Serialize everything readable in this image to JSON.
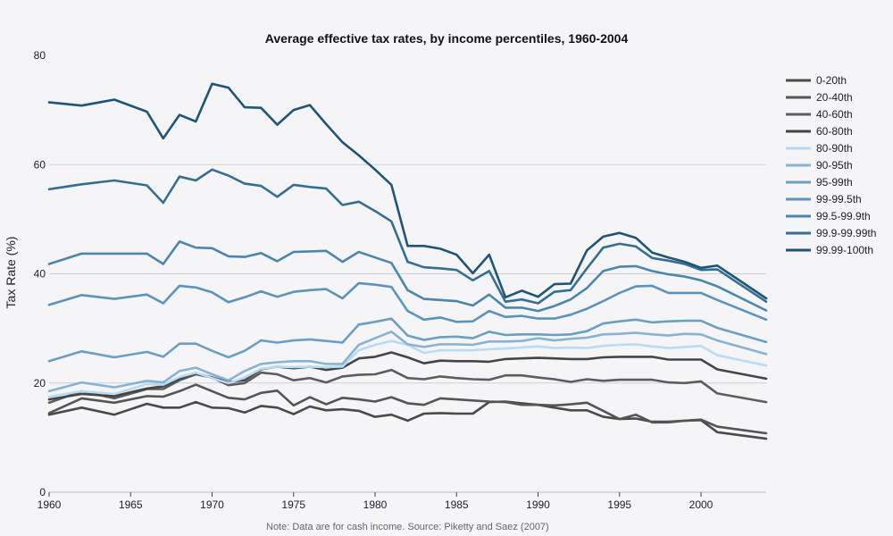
{
  "chart_data": {
    "type": "line",
    "title": "Average effective tax rates, by income percentiles, 1960-2004",
    "ylabel": "Tax Rate (%)",
    "xlabel": "",
    "note": "Note: Data are for cash income. Source: Piketty and Saez (2007)",
    "xlim": [
      1960,
      2004
    ],
    "ylim": [
      0,
      80
    ],
    "x_ticks": [
      1960,
      1965,
      1970,
      1975,
      1980,
      1985,
      1990,
      1995,
      2000
    ],
    "y_ticks": [
      0,
      20,
      40,
      60,
      80
    ],
    "grid": true,
    "legend_position": "right",
    "x": [
      1960,
      1962,
      1964,
      1966,
      1967,
      1968,
      1969,
      1970,
      1971,
      1972,
      1973,
      1974,
      1975,
      1976,
      1977,
      1978,
      1979,
      1980,
      1981,
      1982,
      1983,
      1984,
      1985,
      1986,
      1987,
      1988,
      1989,
      1990,
      1991,
      1992,
      1993,
      1994,
      1995,
      1996,
      1997,
      1998,
      1999,
      2000,
      2001,
      2004
    ],
    "series": [
      {
        "name": "0-20th",
        "color": "#4a4a4a",
        "values": [
          14.2,
          15.5,
          14.2,
          16.2,
          15.5,
          15.5,
          16.5,
          15.5,
          15.4,
          14.6,
          15.8,
          15.5,
          14.3,
          15.7,
          15.0,
          15.2,
          14.9,
          13.8,
          14.2,
          13.1,
          14.4,
          14.5,
          14.4,
          14.4,
          16.5,
          16.6,
          16.3,
          16.0,
          15.5,
          15.0,
          15.0,
          13.8,
          13.4,
          13.5,
          12.9,
          12.9,
          13.1,
          13.2,
          11.0,
          9.8
        ]
      },
      {
        "name": "20-40th",
        "color": "#555555",
        "values": [
          14.5,
          17.2,
          16.4,
          17.6,
          17.5,
          18.5,
          19.7,
          18.5,
          17.3,
          17.0,
          18.2,
          18.6,
          15.9,
          17.4,
          16.1,
          17.3,
          17.0,
          16.6,
          17.4,
          16.3,
          16.0,
          17.2,
          17.0,
          16.8,
          16.6,
          16.5,
          16.0,
          16.0,
          15.9,
          16.1,
          16.4,
          14.9,
          13.4,
          14.2,
          12.8,
          12.8,
          13.1,
          13.3,
          12.0,
          10.8
        ]
      },
      {
        "name": "40-60th",
        "color": "#5d5d5d",
        "values": [
          16.4,
          18.5,
          17.2,
          18.9,
          18.9,
          20.5,
          21.6,
          21.0,
          19.6,
          20.0,
          21.9,
          21.6,
          20.5,
          20.9,
          20.1,
          21.2,
          21.5,
          21.6,
          22.4,
          20.9,
          20.7,
          21.2,
          20.9,
          20.7,
          20.6,
          21.4,
          21.4,
          21.0,
          20.7,
          20.2,
          20.7,
          20.4,
          20.6,
          20.6,
          20.6,
          20.1,
          20.0,
          20.3,
          18.1,
          16.5
        ]
      },
      {
        "name": "60-80th",
        "color": "#454545",
        "values": [
          17.0,
          18.0,
          17.6,
          19.0,
          19.4,
          20.8,
          21.8,
          21.0,
          20.2,
          20.5,
          22.5,
          23.0,
          22.7,
          23.0,
          22.4,
          22.8,
          24.5,
          24.8,
          25.6,
          24.7,
          23.6,
          24.1,
          24.0,
          24.0,
          23.9,
          24.4,
          24.5,
          24.6,
          24.5,
          24.4,
          24.4,
          24.7,
          24.8,
          24.8,
          24.8,
          24.3,
          24.3,
          24.3,
          22.5,
          20.8
        ]
      },
      {
        "name": "80-90th",
        "color": "#b8dbf5",
        "values": [
          17.5,
          18.5,
          18.0,
          19.8,
          19.7,
          21.1,
          21.9,
          20.9,
          20.0,
          21.0,
          22.6,
          23.0,
          22.9,
          23.0,
          22.9,
          23.0,
          26.0,
          27.0,
          27.7,
          27.0,
          25.5,
          26.0,
          26.0,
          26.0,
          26.2,
          26.3,
          26.5,
          26.7,
          26.4,
          26.5,
          26.4,
          26.8,
          27.0,
          27.1,
          26.7,
          26.4,
          26.6,
          26.8,
          25.1,
          23.2
        ]
      },
      {
        "name": "90-95th",
        "color": "#86b3d3",
        "values": [
          18.5,
          20.1,
          19.2,
          20.4,
          20.1,
          22.2,
          22.8,
          21.6,
          20.5,
          22.2,
          23.5,
          23.8,
          24.0,
          24.0,
          23.5,
          23.5,
          27.0,
          28.2,
          29.4,
          27.1,
          26.6,
          27.1,
          27.1,
          27.0,
          27.6,
          27.6,
          27.7,
          28.2,
          27.8,
          28.1,
          28.3,
          28.9,
          29.0,
          29.2,
          28.9,
          28.7,
          29.0,
          28.9,
          27.8,
          25.3
        ]
      },
      {
        "name": "95-99th",
        "color": "#6a9fc3",
        "values": [
          24.0,
          25.8,
          24.7,
          25.7,
          24.8,
          27.2,
          27.2,
          25.9,
          24.7,
          25.9,
          27.8,
          27.4,
          27.8,
          28.0,
          27.7,
          27.4,
          30.7,
          31.2,
          31.8,
          28.7,
          27.9,
          28.4,
          28.5,
          28.2,
          29.4,
          28.8,
          28.9,
          28.9,
          28.8,
          28.9,
          29.5,
          30.9,
          31.3,
          31.6,
          31.1,
          31.3,
          31.4,
          31.4,
          30.1,
          27.5
        ]
      },
      {
        "name": "99-99.5th",
        "color": "#5a93bb",
        "values": [
          34.3,
          36.1,
          35.4,
          36.2,
          34.6,
          37.8,
          37.5,
          36.6,
          34.8,
          35.7,
          36.8,
          35.8,
          36.7,
          37.0,
          37.2,
          35.5,
          38.3,
          38.0,
          37.6,
          33.2,
          31.6,
          32.0,
          31.2,
          31.3,
          33.2,
          32.1,
          32.3,
          31.8,
          31.8,
          32.5,
          33.6,
          35.0,
          36.5,
          37.7,
          37.8,
          36.5,
          36.5,
          36.5,
          35.2,
          31.6
        ]
      },
      {
        "name": "99.5-99.9th",
        "color": "#4a86ae",
        "values": [
          41.8,
          43.7,
          43.7,
          43.7,
          41.8,
          45.9,
          44.8,
          44.7,
          43.2,
          43.1,
          43.8,
          42.3,
          44.0,
          44.1,
          44.2,
          42.2,
          44.0,
          43.0,
          42.0,
          37.0,
          35.4,
          35.2,
          35.0,
          34.2,
          36.2,
          33.8,
          33.8,
          33.2,
          34.1,
          35.3,
          37.4,
          40.5,
          41.3,
          41.4,
          40.5,
          39.9,
          39.5,
          38.8,
          37.7,
          33.3
        ]
      },
      {
        "name": "99.9-99.99th",
        "color": "#336f92",
        "values": [
          55.5,
          56.4,
          57.1,
          56.2,
          53.0,
          57.8,
          57.1,
          59.1,
          58.0,
          56.5,
          56.1,
          54.1,
          56.3,
          55.9,
          55.6,
          52.6,
          53.2,
          51.5,
          49.6,
          42.2,
          41.2,
          41.0,
          40.7,
          38.8,
          40.5,
          34.9,
          35.3,
          34.6,
          36.7,
          37.0,
          41.0,
          44.8,
          45.5,
          45.0,
          42.9,
          42.4,
          41.8,
          40.7,
          40.8,
          34.9
        ]
      },
      {
        "name": "99.99-100th",
        "color": "#1f5577",
        "values": [
          71.4,
          70.8,
          71.9,
          69.7,
          64.8,
          69.1,
          67.9,
          74.8,
          74.1,
          70.5,
          70.4,
          67.3,
          70.0,
          70.9,
          67.4,
          64.1,
          61.7,
          59.1,
          56.3,
          45.1,
          45.1,
          44.6,
          43.5,
          40.1,
          43.5,
          35.7,
          36.9,
          35.8,
          38.1,
          38.2,
          44.3,
          46.8,
          47.5,
          46.6,
          43.9,
          43.0,
          42.2,
          41.1,
          41.5,
          35.5
        ]
      }
    ]
  }
}
